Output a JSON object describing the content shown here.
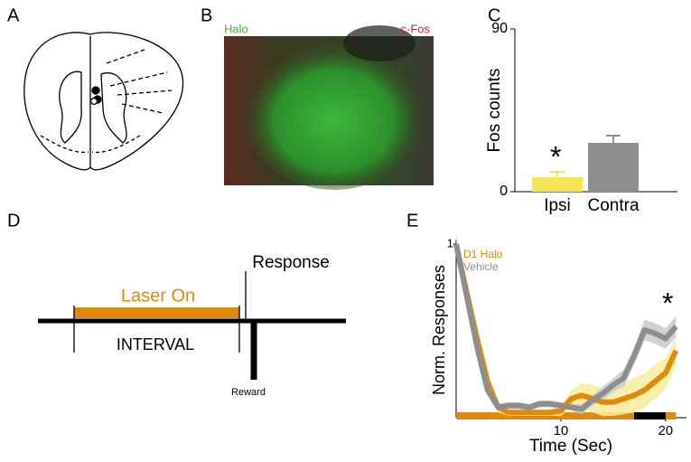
{
  "panel_labels": [
    "A",
    "B",
    "C",
    "D",
    "E"
  ],
  "image_b": {
    "labels": [
      "Halo",
      "c-Fos"
    ]
  },
  "diagram_d": {
    "response": "Response",
    "laser": "Laser On",
    "interval": "INTERVAL",
    "reward": "Reward"
  },
  "chart_data": [
    {
      "type": "bar",
      "ylabel": "Fos counts",
      "categories": [
        "Ipsi",
        "Contra"
      ],
      "values": [
        8,
        27
      ],
      "errors": [
        3,
        4
      ],
      "colors": [
        "#f5e35a",
        "#8e8e90"
      ],
      "ylim": [
        0,
        90
      ],
      "yticks": [
        0,
        90
      ],
      "annotation": "*"
    },
    {
      "type": "line",
      "ylabel": "Norm. Responses",
      "xlabel": "Time (Sec)",
      "x": [
        0,
        1,
        2,
        3,
        4,
        5,
        6,
        7,
        8,
        9,
        10,
        11,
        12,
        13,
        14,
        15,
        16,
        17,
        18,
        19,
        20,
        21
      ],
      "series": [
        {
          "name": "D1 Halo",
          "color": "#e08a0b",
          "band_color": "#f7ec9c",
          "values": [
            1.0,
            0.72,
            0.45,
            0.2,
            0.05,
            0.02,
            0.02,
            0.02,
            0.02,
            0.02,
            0.03,
            0.1,
            0.12,
            0.1,
            0.08,
            0.08,
            0.1,
            0.12,
            0.15,
            0.2,
            0.25,
            0.38
          ],
          "errors": [
            0.03,
            0.04,
            0.04,
            0.04,
            0.03,
            0.02,
            0.02,
            0.02,
            0.02,
            0.02,
            0.03,
            0.05,
            0.07,
            0.08,
            0.08,
            0.08,
            0.09,
            0.1,
            0.1,
            0.1,
            0.09,
            0.08
          ]
        },
        {
          "name": "Vehicle",
          "color": "#8e8e90",
          "band_color": "#c9c9cb",
          "values": [
            1.0,
            0.7,
            0.4,
            0.15,
            0.05,
            0.06,
            0.06,
            0.05,
            0.07,
            0.07,
            0.06,
            0.05,
            0.04,
            0.09,
            0.13,
            0.18,
            0.22,
            0.35,
            0.5,
            0.48,
            0.45,
            0.52
          ],
          "errors": [
            0.06,
            0.05,
            0.04,
            0.03,
            0.02,
            0.02,
            0.02,
            0.02,
            0.02,
            0.02,
            0.02,
            0.02,
            0.03,
            0.03,
            0.04,
            0.04,
            0.05,
            0.05,
            0.06,
            0.06,
            0.06,
            0.06
          ]
        }
      ],
      "xlim": [
        0,
        22
      ],
      "ylim": [
        0,
        1
      ],
      "xticks": [
        10,
        20
      ],
      "yticks": [
        1
      ],
      "annotation": "*"
    }
  ]
}
